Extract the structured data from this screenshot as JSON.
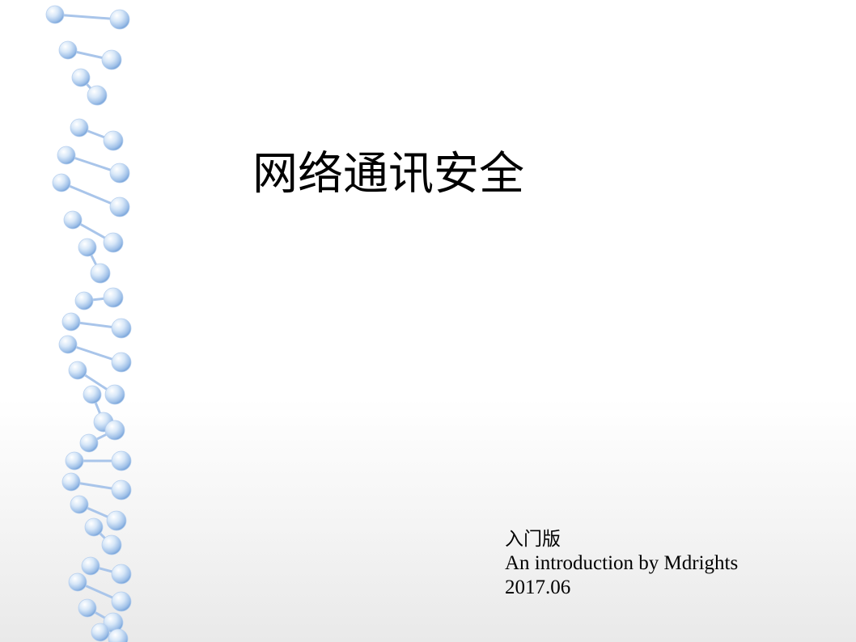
{
  "slide": {
    "title": "网络通讯安全",
    "subtitle": {
      "line1": "入门版",
      "line2": "An introduction by Mdrights",
      "line3": "2017.06"
    }
  },
  "decoration": {
    "icon": "dna-helix-icon",
    "colors": {
      "sphere_light": "#f2f8ff",
      "sphere_mid": "#c6dcf5",
      "sphere_dark": "#7fa9dc",
      "rung": "#a9c5ea"
    }
  }
}
